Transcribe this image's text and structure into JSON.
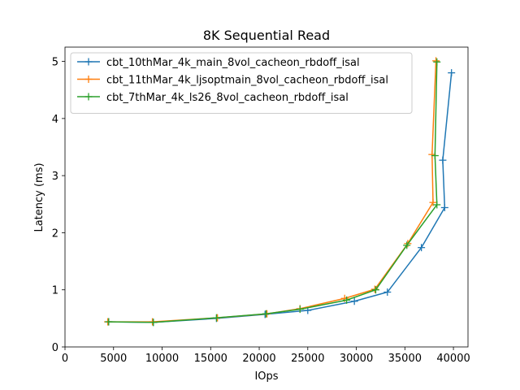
{
  "chart_data": {
    "type": "line",
    "title": "8K  Sequential Read",
    "xlabel": "IOps",
    "ylabel": "Latency (ms)",
    "xlim": [
      0,
      41500
    ],
    "ylim": [
      0,
      5.25
    ],
    "xticks": [
      0,
      5000,
      10000,
      15000,
      20000,
      25000,
      30000,
      35000,
      40000
    ],
    "xtick_labels": [
      "0",
      "5000",
      "10000",
      "15000",
      "20000",
      "25000",
      "30000",
      "35000",
      "40000"
    ],
    "yticks": [
      0,
      1,
      2,
      3,
      4,
      5
    ],
    "ytick_labels": [
      "0",
      "1",
      "2",
      "3",
      "4",
      "5"
    ],
    "grid": false,
    "legend_position": "top-left",
    "marker": "plus",
    "series": [
      {
        "name": "cbt_10thMar_4k_main_8vol_cacheon_rbdoff_isal",
        "color": "#1f77b4",
        "points": [
          [
            4500,
            0.44
          ],
          [
            9100,
            0.43
          ],
          [
            15600,
            0.5
          ],
          [
            20600,
            0.57
          ],
          [
            25000,
            0.64
          ],
          [
            29800,
            0.8
          ],
          [
            33200,
            0.96
          ],
          [
            36700,
            1.74
          ],
          [
            39100,
            2.44
          ],
          [
            38900,
            3.27
          ],
          [
            39800,
            4.8
          ]
        ]
      },
      {
        "name": "cbt_11thMar_4k_ljsoptmain_8vol_cacheon_rbdoff_isal",
        "color": "#ff7f0e",
        "points": [
          [
            4400,
            0.44
          ],
          [
            9000,
            0.44
          ],
          [
            15700,
            0.51
          ],
          [
            20800,
            0.58
          ],
          [
            24200,
            0.67
          ],
          [
            28800,
            0.85
          ],
          [
            31900,
            1.01
          ],
          [
            35300,
            1.81
          ],
          [
            37900,
            2.53
          ],
          [
            37800,
            3.37
          ],
          [
            38200,
            5.01
          ]
        ]
      },
      {
        "name": "cbt_7thMar_4k_ls26_8vol_cacheon_rbdoff_isal",
        "color": "#2ca02c",
        "points": [
          [
            4500,
            0.44
          ],
          [
            9100,
            0.43
          ],
          [
            15600,
            0.51
          ],
          [
            20700,
            0.58
          ],
          [
            24200,
            0.66
          ],
          [
            29000,
            0.82
          ],
          [
            32000,
            1.0
          ],
          [
            35200,
            1.78
          ],
          [
            38300,
            2.49
          ],
          [
            38100,
            3.35
          ],
          [
            38300,
            4.99
          ]
        ]
      }
    ]
  }
}
